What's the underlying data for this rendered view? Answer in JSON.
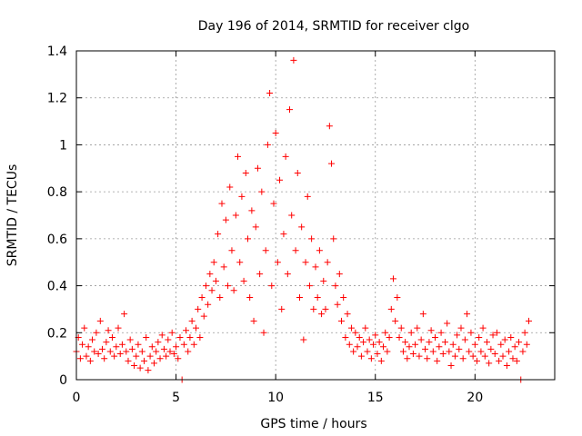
{
  "chart_data": {
    "type": "scatter",
    "title": "Day 196 of 2014, SRMTID for receiver clgo",
    "xlabel": "GPS time / hours",
    "ylabel": "SRMTID / TECUs",
    "xlim": [
      0,
      24
    ],
    "ylim": [
      0,
      1.4
    ],
    "xticks": [
      0,
      5,
      10,
      15,
      20
    ],
    "yticks": [
      0,
      0.2,
      0.4,
      0.6,
      0.8,
      1,
      1.2,
      1.4
    ],
    "ytick_labels": [
      "0",
      "0.2",
      "0.4",
      "0.6",
      "0.8",
      "1",
      "1.2",
      "1.4"
    ],
    "grid": true,
    "marker": "+",
    "color": "#ff0000",
    "series": [
      {
        "name": "SRMTID",
        "points": [
          [
            0.0,
            0.12
          ],
          [
            0.1,
            0.18
          ],
          [
            0.2,
            0.09
          ],
          [
            0.3,
            0.15
          ],
          [
            0.4,
            0.22
          ],
          [
            0.5,
            0.1
          ],
          [
            0.6,
            0.14
          ],
          [
            0.7,
            0.08
          ],
          [
            0.8,
            0.17
          ],
          [
            0.9,
            0.12
          ],
          [
            1.0,
            0.2
          ],
          [
            1.1,
            0.11
          ],
          [
            1.2,
            0.25
          ],
          [
            1.3,
            0.13
          ],
          [
            1.4,
            0.09
          ],
          [
            1.5,
            0.16
          ],
          [
            1.6,
            0.21
          ],
          [
            1.7,
            0.12
          ],
          [
            1.8,
            0.18
          ],
          [
            1.9,
            0.1
          ],
          [
            2.0,
            0.14
          ],
          [
            2.1,
            0.22
          ],
          [
            2.2,
            0.11
          ],
          [
            2.3,
            0.15
          ],
          [
            2.4,
            0.28
          ],
          [
            2.5,
            0.12
          ],
          [
            2.6,
            0.08
          ],
          [
            2.7,
            0.17
          ],
          [
            2.8,
            0.13
          ],
          [
            2.9,
            0.06
          ],
          [
            3.0,
            0.1
          ],
          [
            3.1,
            0.15
          ],
          [
            3.2,
            0.05
          ],
          [
            3.3,
            0.12
          ],
          [
            3.4,
            0.08
          ],
          [
            3.5,
            0.18
          ],
          [
            3.6,
            0.04
          ],
          [
            3.7,
            0.1
          ],
          [
            3.8,
            0.14
          ],
          [
            3.9,
            0.07
          ],
          [
            4.0,
            0.12
          ],
          [
            4.1,
            0.16
          ],
          [
            4.2,
            0.09
          ],
          [
            4.3,
            0.19
          ],
          [
            4.4,
            0.13
          ],
          [
            4.5,
            0.1
          ],
          [
            4.6,
            0.17
          ],
          [
            4.7,
            0.12
          ],
          [
            4.8,
            0.2
          ],
          [
            4.9,
            0.11
          ],
          [
            5.0,
            0.14
          ],
          [
            5.1,
            0.09
          ],
          [
            5.2,
            0.18
          ],
          [
            5.3,
            0.0
          ],
          [
            5.4,
            0.15
          ],
          [
            5.5,
            0.21
          ],
          [
            5.6,
            0.12
          ],
          [
            5.7,
            0.18
          ],
          [
            5.8,
            0.25
          ],
          [
            5.9,
            0.15
          ],
          [
            6.0,
            0.22
          ],
          [
            6.1,
            0.3
          ],
          [
            6.2,
            0.18
          ],
          [
            6.3,
            0.35
          ],
          [
            6.4,
            0.27
          ],
          [
            6.5,
            0.4
          ],
          [
            6.6,
            0.32
          ],
          [
            6.7,
            0.45
          ],
          [
            6.8,
            0.38
          ],
          [
            6.9,
            0.5
          ],
          [
            7.0,
            0.42
          ],
          [
            7.1,
            0.62
          ],
          [
            7.2,
            0.35
          ],
          [
            7.3,
            0.75
          ],
          [
            7.4,
            0.48
          ],
          [
            7.5,
            0.68
          ],
          [
            7.6,
            0.4
          ],
          [
            7.7,
            0.82
          ],
          [
            7.8,
            0.55
          ],
          [
            7.9,
            0.38
          ],
          [
            8.0,
            0.7
          ],
          [
            8.1,
            0.95
          ],
          [
            8.2,
            0.5
          ],
          [
            8.3,
            0.78
          ],
          [
            8.4,
            0.42
          ],
          [
            8.5,
            0.88
          ],
          [
            8.6,
            0.6
          ],
          [
            8.7,
            0.35
          ],
          [
            8.8,
            0.72
          ],
          [
            8.9,
            0.25
          ],
          [
            9.0,
            0.65
          ],
          [
            9.1,
            0.9
          ],
          [
            9.2,
            0.45
          ],
          [
            9.3,
            0.8
          ],
          [
            9.4,
            0.2
          ],
          [
            9.5,
            0.55
          ],
          [
            9.6,
            1.0
          ],
          [
            9.7,
            1.22
          ],
          [
            9.8,
            0.4
          ],
          [
            9.9,
            0.75
          ],
          [
            10.0,
            1.05
          ],
          [
            10.1,
            0.5
          ],
          [
            10.2,
            0.85
          ],
          [
            10.3,
            0.3
          ],
          [
            10.4,
            0.62
          ],
          [
            10.5,
            0.95
          ],
          [
            10.6,
            0.45
          ],
          [
            10.7,
            1.15
          ],
          [
            10.8,
            0.7
          ],
          [
            10.9,
            1.36
          ],
          [
            11.0,
            0.55
          ],
          [
            11.1,
            0.88
          ],
          [
            11.2,
            0.35
          ],
          [
            11.3,
            0.65
          ],
          [
            11.4,
            0.17
          ],
          [
            11.5,
            0.5
          ],
          [
            11.6,
            0.78
          ],
          [
            11.7,
            0.4
          ],
          [
            11.8,
            0.6
          ],
          [
            11.9,
            0.3
          ],
          [
            12.0,
            0.48
          ],
          [
            12.1,
            0.35
          ],
          [
            12.2,
            0.55
          ],
          [
            12.3,
            0.28
          ],
          [
            12.4,
            0.42
          ],
          [
            12.5,
            0.3
          ],
          [
            12.6,
            0.5
          ],
          [
            12.7,
            1.08
          ],
          [
            12.8,
            0.92
          ],
          [
            12.9,
            0.6
          ],
          [
            13.0,
            0.4
          ],
          [
            13.1,
            0.32
          ],
          [
            13.2,
            0.45
          ],
          [
            13.3,
            0.25
          ],
          [
            13.4,
            0.35
          ],
          [
            13.5,
            0.18
          ],
          [
            13.6,
            0.28
          ],
          [
            13.7,
            0.15
          ],
          [
            13.8,
            0.22
          ],
          [
            13.9,
            0.12
          ],
          [
            14.0,
            0.2
          ],
          [
            14.1,
            0.14
          ],
          [
            14.2,
            0.18
          ],
          [
            14.3,
            0.1
          ],
          [
            14.4,
            0.16
          ],
          [
            14.5,
            0.22
          ],
          [
            14.6,
            0.12
          ],
          [
            14.7,
            0.17
          ],
          [
            14.8,
            0.09
          ],
          [
            14.9,
            0.15
          ],
          [
            15.0,
            0.19
          ],
          [
            15.1,
            0.11
          ],
          [
            15.2,
            0.16
          ],
          [
            15.3,
            0.08
          ],
          [
            15.4,
            0.14
          ],
          [
            15.5,
            0.2
          ],
          [
            15.6,
            0.12
          ],
          [
            15.7,
            0.18
          ],
          [
            15.8,
            0.3
          ],
          [
            15.9,
            0.43
          ],
          [
            16.0,
            0.25
          ],
          [
            16.1,
            0.35
          ],
          [
            16.2,
            0.18
          ],
          [
            16.3,
            0.22
          ],
          [
            16.4,
            0.12
          ],
          [
            16.5,
            0.16
          ],
          [
            16.6,
            0.09
          ],
          [
            16.7,
            0.14
          ],
          [
            16.8,
            0.2
          ],
          [
            16.9,
            0.11
          ],
          [
            17.0,
            0.15
          ],
          [
            17.1,
            0.22
          ],
          [
            17.2,
            0.1
          ],
          [
            17.3,
            0.17
          ],
          [
            17.4,
            0.28
          ],
          [
            17.5,
            0.13
          ],
          [
            17.6,
            0.09
          ],
          [
            17.7,
            0.16
          ],
          [
            17.8,
            0.21
          ],
          [
            17.9,
            0.12
          ],
          [
            18.0,
            0.18
          ],
          [
            18.1,
            0.08
          ],
          [
            18.2,
            0.14
          ],
          [
            18.3,
            0.2
          ],
          [
            18.4,
            0.11
          ],
          [
            18.5,
            0.16
          ],
          [
            18.6,
            0.24
          ],
          [
            18.7,
            0.12
          ],
          [
            18.8,
            0.06
          ],
          [
            18.9,
            0.15
          ],
          [
            19.0,
            0.1
          ],
          [
            19.1,
            0.19
          ],
          [
            19.2,
            0.13
          ],
          [
            19.3,
            0.22
          ],
          [
            19.4,
            0.09
          ],
          [
            19.5,
            0.17
          ],
          [
            19.6,
            0.28
          ],
          [
            19.7,
            0.12
          ],
          [
            19.8,
            0.2
          ],
          [
            19.9,
            0.1
          ],
          [
            20.0,
            0.15
          ],
          [
            20.1,
            0.08
          ],
          [
            20.2,
            0.18
          ],
          [
            20.3,
            0.12
          ],
          [
            20.4,
            0.22
          ],
          [
            20.5,
            0.1
          ],
          [
            20.6,
            0.16
          ],
          [
            20.7,
            0.07
          ],
          [
            20.8,
            0.13
          ],
          [
            20.9,
            0.19
          ],
          [
            21.0,
            0.11
          ],
          [
            21.1,
            0.2
          ],
          [
            21.2,
            0.08
          ],
          [
            21.3,
            0.15
          ],
          [
            21.4,
            0.1
          ],
          [
            21.5,
            0.17
          ],
          [
            21.6,
            0.06
          ],
          [
            21.7,
            0.12
          ],
          [
            21.8,
            0.18
          ],
          [
            21.9,
            0.09
          ],
          [
            22.0,
            0.14
          ],
          [
            22.1,
            0.08
          ],
          [
            22.2,
            0.16
          ],
          [
            22.3,
            0.0
          ],
          [
            22.4,
            0.12
          ],
          [
            22.5,
            0.2
          ],
          [
            22.6,
            0.15
          ],
          [
            22.7,
            0.25
          ]
        ]
      }
    ]
  }
}
